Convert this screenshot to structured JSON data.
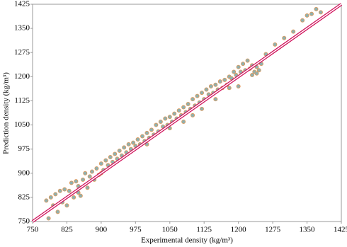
{
  "chart_data": {
    "type": "scatter",
    "x_label": "Experimental density (kg/m³)",
    "y_label": "Prediction density (kg/m³)",
    "xlim": [
      750,
      1425
    ],
    "ylim": [
      750,
      1425
    ],
    "xticks": [
      750,
      825,
      900,
      975,
      1050,
      1125,
      1200,
      1275,
      1350,
      1425
    ],
    "yticks": [
      750,
      825,
      900,
      975,
      1050,
      1125,
      1200,
      1275,
      1350,
      1425
    ],
    "grid": false,
    "marker_fill": "#8fb0ae",
    "marker_edge": "#e0995a",
    "reference_line": {
      "x": [
        750,
        1425
      ],
      "y": [
        750,
        1425
      ],
      "color": "#d0105a"
    },
    "x": [
      780,
      785,
      790,
      795,
      800,
      805,
      810,
      815,
      820,
      825,
      830,
      835,
      840,
      845,
      850,
      855,
      860,
      865,
      870,
      875,
      880,
      885,
      890,
      895,
      900,
      905,
      910,
      915,
      920,
      925,
      930,
      935,
      940,
      945,
      950,
      955,
      960,
      965,
      970,
      975,
      980,
      985,
      990,
      995,
      1000,
      1005,
      1010,
      1015,
      1020,
      1025,
      1030,
      1035,
      1040,
      1045,
      1050,
      1055,
      1060,
      1065,
      1070,
      1075,
      1080,
      1085,
      1090,
      1095,
      1100,
      1105,
      1110,
      1115,
      1120,
      1125,
      1130,
      1135,
      1140,
      1145,
      1150,
      1155,
      1160,
      1165,
      1170,
      1175,
      1180,
      1185,
      1190,
      1195,
      1200,
      1205,
      1210,
      1215,
      1220,
      1225,
      1230,
      1235,
      1240,
      1245,
      1250,
      1260,
      1280,
      1300,
      1320,
      1340,
      1350,
      1360,
      1370,
      1380,
      1000,
      1050,
      1100,
      1150,
      1200,
      1180,
      900,
      850,
      1240,
      1230,
      1120,
      1080
    ],
    "y": [
      815,
      760,
      825,
      800,
      835,
      780,
      845,
      810,
      850,
      800,
      845,
      870,
      825,
      875,
      860,
      830,
      880,
      900,
      855,
      890,
      905,
      880,
      915,
      895,
      930,
      910,
      940,
      925,
      950,
      935,
      960,
      945,
      970,
      955,
      980,
      965,
      990,
      975,
      995,
      985,
      1005,
      990,
      1015,
      1000,
      1025,
      1010,
      1035,
      1020,
      1050,
      1030,
      1060,
      1045,
      1070,
      1050,
      1075,
      1060,
      1085,
      1070,
      1095,
      1080,
      1105,
      1090,
      1115,
      1100,
      1130,
      1110,
      1140,
      1120,
      1150,
      1130,
      1160,
      1145,
      1170,
      1150,
      1175,
      1160,
      1185,
      1165,
      1190,
      1175,
      1200,
      1195,
      1215,
      1205,
      1230,
      1215,
      1240,
      1220,
      1250,
      1225,
      1235,
      1215,
      1230,
      1220,
      1240,
      1270,
      1300,
      1320,
      1340,
      1375,
      1390,
      1395,
      1410,
      1400,
      990,
      1040,
      1080,
      1130,
      1170,
      1165,
      900,
      840,
      1210,
      1205,
      1100,
      1060
    ]
  }
}
